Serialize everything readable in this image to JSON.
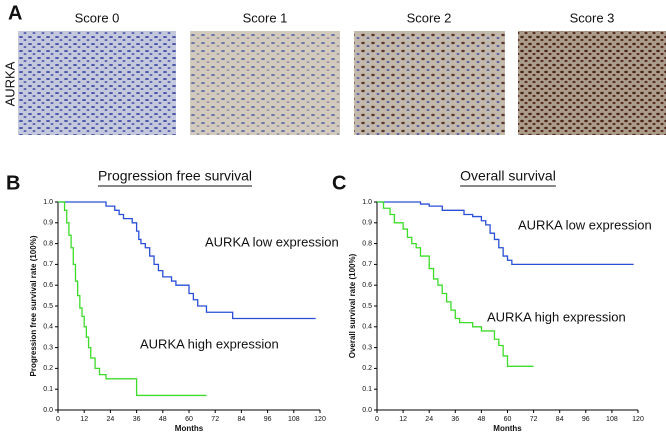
{
  "panel_a": {
    "label": "A",
    "row_label": "AURKA",
    "scores": [
      "Score 0",
      "Score 1",
      "Score 2",
      "Score 3"
    ]
  },
  "chart_data": [
    {
      "type": "step",
      "panel": "B",
      "title": "Progression free survival",
      "ylabel": "Progression free survival rate (100%)",
      "xlabel": "Months",
      "xlim": [
        0,
        120
      ],
      "xticks": [
        0,
        12,
        24,
        36,
        48,
        60,
        72,
        84,
        96,
        108,
        120
      ],
      "ylim": [
        0,
        1
      ],
      "yticks": [
        {
          "value": 0,
          "label": "0.0"
        },
        0.1,
        0.2,
        0.3,
        0.4,
        0.5,
        0.6,
        0.7,
        0.8,
        0.9,
        {
          "value": 1,
          "label": "1.0"
        }
      ],
      "annotations": [
        "AURKA low expression",
        "AURKA  high expression"
      ],
      "series": [
        {
          "color": "#2a4fd6",
          "x": [
            0,
            22,
            26,
            28,
            30,
            34,
            36,
            37,
            38,
            40,
            42,
            44,
            46,
            48,
            52,
            54,
            60,
            62,
            64,
            68,
            80,
            118
          ],
          "values": [
            1,
            0.98,
            0.96,
            0.94,
            0.92,
            0.9,
            0.86,
            0.82,
            0.8,
            0.78,
            0.74,
            0.7,
            0.67,
            0.64,
            0.62,
            0.6,
            0.56,
            0.53,
            0.5,
            0.47,
            0.44,
            0.44
          ]
        },
        {
          "color": "#3ddc2a",
          "x": [
            0,
            3,
            4,
            5,
            6,
            7,
            8,
            9,
            10,
            11,
            12,
            13,
            14,
            15,
            17,
            19,
            22,
            36,
            68
          ],
          "values": [
            1,
            0.96,
            0.9,
            0.84,
            0.78,
            0.7,
            0.62,
            0.55,
            0.49,
            0.45,
            0.4,
            0.35,
            0.3,
            0.25,
            0.2,
            0.17,
            0.15,
            0.07,
            0.07
          ]
        }
      ]
    },
    {
      "type": "step",
      "panel": "C",
      "title": "Overall survival",
      "ylabel": "Overall survival rate (100%)",
      "xlabel": "Months",
      "xlim": [
        0,
        120
      ],
      "xticks": [
        0,
        12,
        24,
        36,
        48,
        60,
        72,
        84,
        96,
        108,
        120
      ],
      "ylim": [
        0,
        1
      ],
      "yticks": [
        {
          "value": 0,
          "label": "0.0"
        },
        0.1,
        0.2,
        0.3,
        0.4,
        0.5,
        0.6,
        0.7,
        0.8,
        0.9,
        {
          "value": 1,
          "label": "1.0"
        }
      ],
      "annotations": [
        "AURKA low expression",
        "AURKA  high expression"
      ],
      "series": [
        {
          "color": "#2a4fd6",
          "x": [
            0,
            20,
            24,
            30,
            40,
            44,
            48,
            50,
            52,
            54,
            56,
            58,
            60,
            62,
            118
          ],
          "values": [
            1,
            0.99,
            0.98,
            0.96,
            0.94,
            0.93,
            0.91,
            0.89,
            0.85,
            0.82,
            0.78,
            0.74,
            0.72,
            0.7,
            0.7
          ]
        },
        {
          "color": "#3ddc2a",
          "x": [
            0,
            3,
            6,
            8,
            12,
            14,
            16,
            18,
            20,
            24,
            26,
            28,
            30,
            32,
            34,
            36,
            38,
            44,
            48,
            54,
            56,
            58,
            60,
            72
          ],
          "values": [
            1,
            0.97,
            0.94,
            0.9,
            0.87,
            0.83,
            0.8,
            0.78,
            0.74,
            0.68,
            0.63,
            0.6,
            0.56,
            0.52,
            0.48,
            0.44,
            0.42,
            0.4,
            0.38,
            0.34,
            0.31,
            0.26,
            0.21,
            0.21
          ]
        }
      ]
    }
  ]
}
